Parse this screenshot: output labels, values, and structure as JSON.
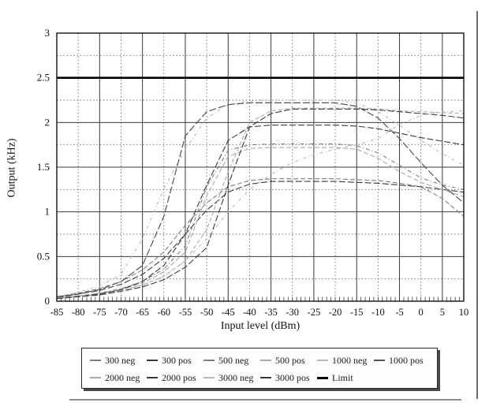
{
  "figure": {
    "xlabel": "Input level (dBm)",
    "ylabel": "Output (kHz)"
  },
  "chart_data": {
    "type": "line",
    "title": "",
    "xlabel": "Input level (dBm)",
    "ylabel": "Output (kHz)",
    "xlim": [
      -85,
      10
    ],
    "ylim": [
      0,
      3
    ],
    "x_tick_labels": [
      "-85",
      "-80",
      "-75",
      "-70",
      "-65",
      "-60",
      "-55",
      "-50",
      "-45",
      "-40",
      "-35",
      "-30",
      "-25",
      "-20",
      "-15",
      "-10",
      "-5",
      "0",
      "5",
      "10"
    ],
    "x_ticks": [
      -85,
      -80,
      -75,
      -70,
      -65,
      -60,
      -55,
      -50,
      -45,
      -40,
      -35,
      -30,
      -25,
      -20,
      -15,
      -10,
      -5,
      0,
      5,
      10
    ],
    "y_tick_labels": [
      "0",
      "0.5",
      "1",
      "1.5",
      "2",
      "2.5",
      "3"
    ],
    "y_ticks": [
      0,
      0.5,
      1,
      1.5,
      2,
      2.5,
      3
    ],
    "y_minor_step": 0.25,
    "x_minor_step": 1,
    "grid": "major solid + minor dotted, full box frame",
    "legend_position": "boxed below plot, 2 rows",
    "axis_color": "#111111",
    "grid_major_color": "#3c3c3c",
    "grid_minor_color": "#6f6f6f",
    "x": [
      -85,
      -80,
      -75,
      -70,
      -65,
      -60,
      -55,
      -50,
      -45,
      -40,
      -35,
      -30,
      -25,
      -20,
      -15,
      -10,
      -5,
      0,
      5,
      10
    ],
    "series": [
      {
        "name": "300 neg",
        "color": "#7d7d7d",
        "dash": "6 3",
        "width": 1.1,
        "values": [
          0.05,
          0.09,
          0.14,
          0.22,
          0.35,
          0.55,
          0.85,
          1.1,
          1.28,
          1.35,
          1.37,
          1.37,
          1.37,
          1.37,
          1.36,
          1.35,
          1.32,
          1.28,
          1.15,
          0.95
        ]
      },
      {
        "name": "300 pos",
        "color": "#3a3a3a",
        "dash": "8 3",
        "width": 1.1,
        "values": [
          0.04,
          0.08,
          0.12,
          0.19,
          0.3,
          0.48,
          0.75,
          1.02,
          1.22,
          1.31,
          1.34,
          1.34,
          1.34,
          1.34,
          1.33,
          1.32,
          1.3,
          1.28,
          1.25,
          1.22
        ]
      },
      {
        "name": "500 neg",
        "color": "#7d7d7d",
        "dash": "5 3 1 3",
        "width": 1.1,
        "values": [
          0.04,
          0.06,
          0.09,
          0.14,
          0.22,
          0.36,
          0.62,
          1.28,
          1.69,
          1.75,
          1.76,
          1.76,
          1.76,
          1.76,
          1.74,
          1.66,
          1.52,
          1.38,
          1.3,
          1.25
        ]
      },
      {
        "name": "500 pos",
        "color": "#a8a8a8",
        "dash": "6 3",
        "width": 1.1,
        "values": [
          0.04,
          0.06,
          0.09,
          0.13,
          0.2,
          0.33,
          0.55,
          1.18,
          1.62,
          1.71,
          1.72,
          1.72,
          1.72,
          1.72,
          1.7,
          1.6,
          1.45,
          1.33,
          1.25,
          1.17
        ]
      },
      {
        "name": "1000 neg",
        "color": "#b9b9b9",
        "dash": "4 3 1 3",
        "width": 1.1,
        "values": [
          0.05,
          0.1,
          0.17,
          0.3,
          0.7,
          1.26,
          1.7,
          2.05,
          2.2,
          2.24,
          2.25,
          2.25,
          2.25,
          2.25,
          2.22,
          2.12,
          1.97,
          1.8,
          1.65,
          1.52
        ]
      },
      {
        "name": "1000 pos",
        "color": "#555555",
        "dash": "9 3",
        "width": 1.2,
        "values": [
          0.05,
          0.08,
          0.13,
          0.22,
          0.4,
          0.95,
          1.85,
          2.12,
          2.2,
          2.22,
          2.22,
          2.22,
          2.22,
          2.22,
          2.18,
          2.05,
          1.82,
          1.55,
          1.3,
          1.1
        ]
      },
      {
        "name": "2000 neg",
        "color": "#a8a8a8",
        "dash": "5 3",
        "width": 1.1,
        "values": [
          0.03,
          0.05,
          0.08,
          0.12,
          0.18,
          0.28,
          0.45,
          0.8,
          1.45,
          2.0,
          2.13,
          2.16,
          2.16,
          2.16,
          2.16,
          2.15,
          2.13,
          2.12,
          2.11,
          2.1
        ]
      },
      {
        "name": "2000 pos",
        "color": "#3a3a3a",
        "dash": "8 3",
        "width": 1.1,
        "values": [
          0.03,
          0.05,
          0.07,
          0.11,
          0.16,
          0.24,
          0.38,
          0.6,
          1.3,
          1.95,
          2.1,
          2.15,
          2.15,
          2.15,
          2.15,
          2.14,
          2.12,
          2.1,
          2.08,
          2.05
        ]
      },
      {
        "name": "3000 neg",
        "color": "#b9b9b9",
        "dash": "4 3 1 3",
        "width": 1.1,
        "values": [
          0.03,
          0.05,
          0.08,
          0.12,
          0.18,
          0.28,
          0.45,
          0.7,
          1.0,
          1.25,
          1.42,
          1.55,
          1.64,
          1.7,
          1.75,
          1.82,
          1.98,
          2.08,
          2.12,
          2.13
        ]
      },
      {
        "name": "3000 pos",
        "color": "#3a3a3a",
        "dash": "8 3",
        "width": 1.1,
        "values": [
          0.03,
          0.05,
          0.08,
          0.13,
          0.22,
          0.4,
          0.75,
          1.3,
          1.8,
          1.95,
          1.97,
          1.97,
          1.97,
          1.97,
          1.96,
          1.93,
          1.88,
          1.83,
          1.79,
          1.75
        ]
      },
      {
        "name": "Limit",
        "color": "#000000",
        "dash": "",
        "width": 2.6,
        "values": [
          2.5,
          2.5,
          2.5,
          2.5,
          2.5,
          2.5,
          2.5,
          2.5,
          2.5,
          2.5,
          2.5,
          2.5,
          2.5,
          2.5,
          2.5,
          2.5,
          2.5,
          2.5,
          2.5,
          2.5
        ]
      }
    ]
  },
  "legend": {
    "rows": [
      [
        "300 neg",
        "300 pos",
        "500 neg",
        "500 pos",
        "1000 neg",
        "1000 pos"
      ],
      [
        "2000 neg",
        "2000 pos",
        "3000 neg",
        "3000 pos",
        "Limit"
      ]
    ]
  }
}
